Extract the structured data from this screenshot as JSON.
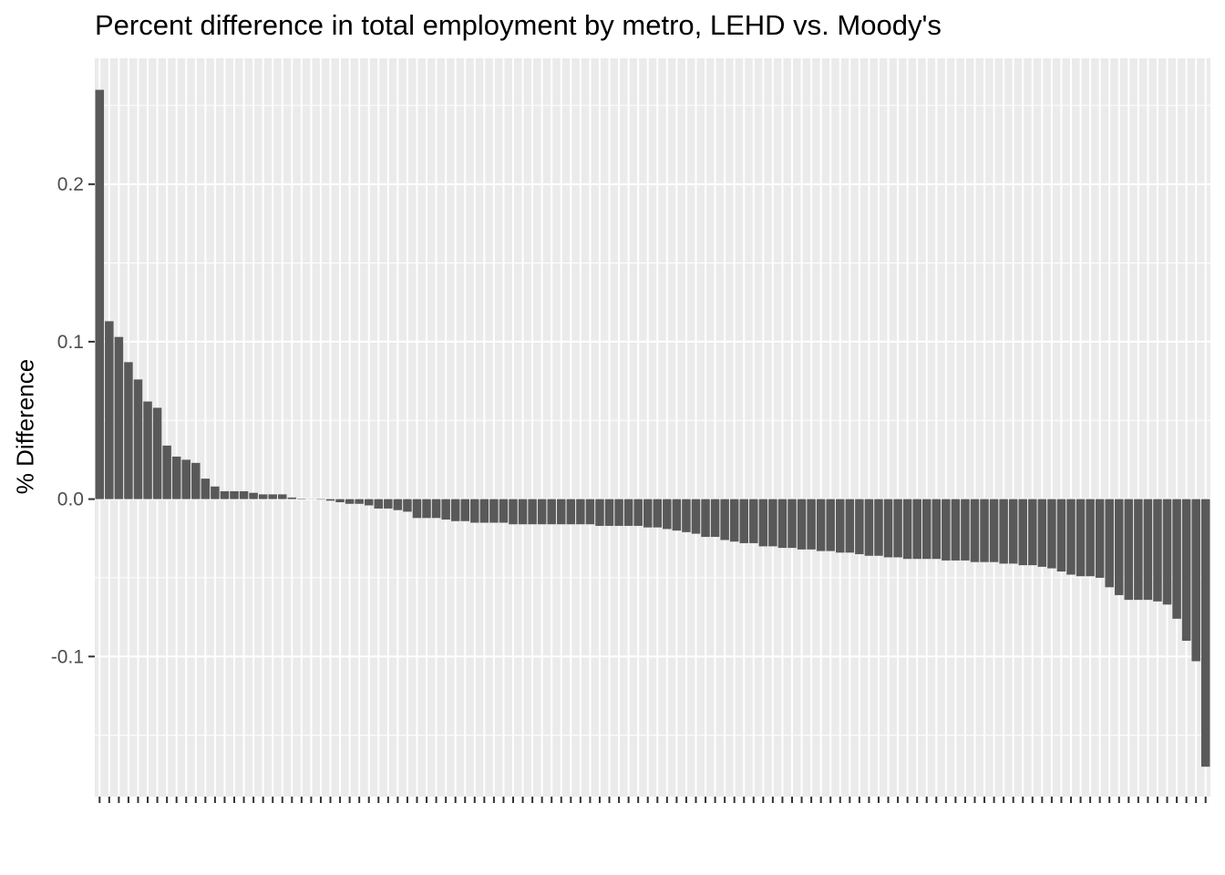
{
  "chart_data": {
    "type": "bar",
    "title": "Percent difference in total employment by metro, LEHD vs. Moody's",
    "xlabel": "",
    "ylabel": "% Difference",
    "ylim": [
      -0.189,
      0.28
    ],
    "yticks": [
      -0.1,
      0.0,
      0.1,
      0.2
    ],
    "ytick_labels": [
      "-0.1",
      "0.0",
      "0.1",
      "0.2"
    ],
    "grid": true,
    "panel_background": "#ebebeb",
    "bar_color": "#595959",
    "values": [
      0.26,
      0.113,
      0.103,
      0.087,
      0.076,
      0.062,
      0.058,
      0.034,
      0.027,
      0.025,
      0.023,
      0.013,
      0.008,
      0.005,
      0.005,
      0.005,
      0.004,
      0.003,
      0.003,
      0.003,
      0.001,
      0.0003,
      0.0001,
      -0.0003,
      -0.001,
      -0.002,
      -0.003,
      -0.003,
      -0.004,
      -0.006,
      -0.006,
      -0.007,
      -0.008,
      -0.012,
      -0.012,
      -0.012,
      -0.013,
      -0.014,
      -0.014,
      -0.015,
      -0.015,
      -0.015,
      -0.015,
      -0.016,
      -0.016,
      -0.016,
      -0.016,
      -0.016,
      -0.016,
      -0.016,
      -0.016,
      -0.016,
      -0.017,
      -0.017,
      -0.017,
      -0.017,
      -0.017,
      -0.018,
      -0.018,
      -0.019,
      -0.02,
      -0.021,
      -0.022,
      -0.024,
      -0.024,
      -0.026,
      -0.027,
      -0.028,
      -0.028,
      -0.03,
      -0.03,
      -0.031,
      -0.031,
      -0.032,
      -0.032,
      -0.033,
      -0.033,
      -0.034,
      -0.034,
      -0.035,
      -0.036,
      -0.036,
      -0.037,
      -0.037,
      -0.038,
      -0.038,
      -0.038,
      -0.038,
      -0.039,
      -0.039,
      -0.039,
      -0.04,
      -0.04,
      -0.04,
      -0.041,
      -0.041,
      -0.042,
      -0.042,
      -0.043,
      -0.044,
      -0.046,
      -0.048,
      -0.049,
      -0.049,
      -0.05,
      -0.056,
      -0.061,
      -0.064,
      -0.064,
      -0.064,
      -0.065,
      -0.067,
      -0.076,
      -0.09,
      -0.103,
      -0.17
    ]
  }
}
